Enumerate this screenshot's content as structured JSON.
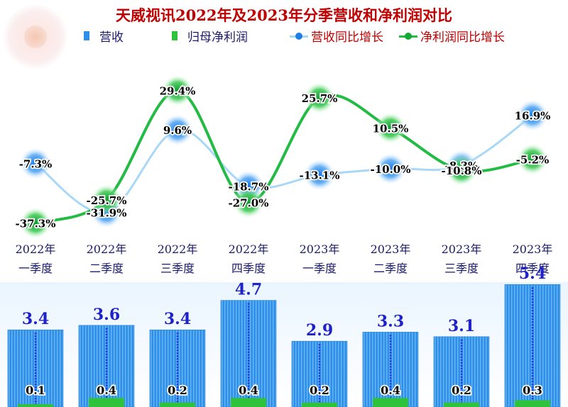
{
  "title": "天威视讯2022年及2023年分季营收和净利润对比",
  "legend": {
    "revenue": "营收",
    "net_profit": "归母净利润",
    "revenue_growth": "营收同比增长",
    "profit_growth": "净利润同比增长"
  },
  "colors": {
    "title": "#c00000",
    "revenue_bar": "#2e8fe8",
    "profit_bar": "#2ec33a",
    "revenue_line": "#a9d8f6",
    "profit_line": "#22bb44",
    "bar_label": "#1f22c8",
    "category_text": "#1a1a6e"
  },
  "chart_data": {
    "type": "bar",
    "categories": [
      [
        "2022年",
        "一季度"
      ],
      [
        "2022年",
        "二季度"
      ],
      [
        "2022年",
        "三季度"
      ],
      [
        "2022年",
        "四季度"
      ],
      [
        "2023年",
        "一季度"
      ],
      [
        "2023年",
        "二季度"
      ],
      [
        "2023年",
        "三季度"
      ],
      [
        "2023年",
        "四季度"
      ]
    ],
    "series": [
      {
        "name": "营收",
        "kind": "bar",
        "values": [
          3.4,
          3.6,
          3.4,
          4.7,
          2.9,
          3.3,
          3.1,
          5.4
        ]
      },
      {
        "name": "归母净利润",
        "kind": "bar",
        "values": [
          0.1,
          0.4,
          0.2,
          0.4,
          0.2,
          0.4,
          0.2,
          0.3
        ]
      }
    ],
    "lines": [
      {
        "name": "营收同比增长",
        "kind": "line",
        "unit": "%",
        "values": [
          -7.3,
          -31.9,
          9.6,
          -18.7,
          -13.1,
          -10.0,
          -8.3,
          16.9
        ]
      },
      {
        "name": "净利润同比增长",
        "kind": "line",
        "unit": "%",
        "values": [
          -37.3,
          -25.7,
          29.4,
          -27.0,
          25.7,
          10.5,
          -10.8,
          -5.2
        ]
      }
    ],
    "value_labels": {
      "revenue": [
        "3.4",
        "3.6",
        "3.4",
        "4.7",
        "2.9",
        "3.3",
        "3.1",
        "5.4"
      ],
      "net_profit": [
        "0.1",
        "0.4",
        "0.2",
        "0.4",
        "0.2",
        "0.4",
        "0.2",
        "0.3"
      ],
      "revenue_growth": [
        "-7.3%",
        "-31.9%",
        "9.6%",
        "-18.7%",
        "-13.1%",
        "-10.0%",
        "-8.3%",
        "16.9%"
      ],
      "profit_growth": [
        "-37.3%",
        "-25.7%",
        "29.4%",
        "-27.0%",
        "25.7%",
        "10.5%",
        "-10.8%",
        "-5.2%"
      ]
    },
    "legend_position": "top",
    "grid": false
  }
}
